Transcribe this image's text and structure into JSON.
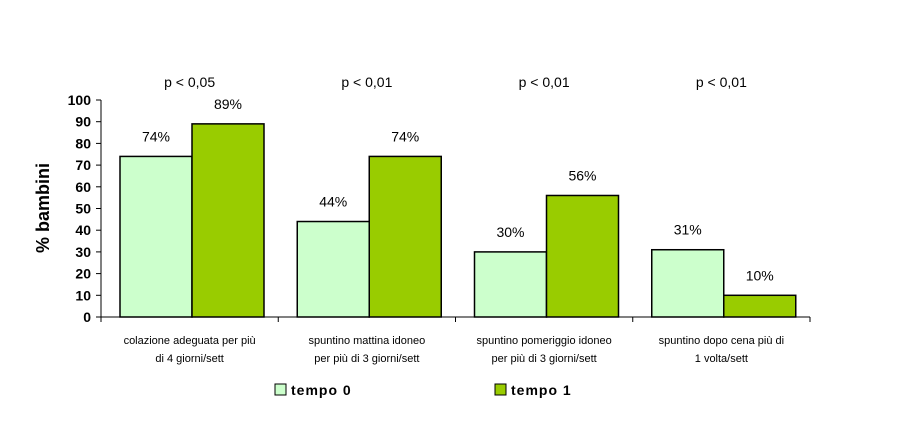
{
  "chart_data": {
    "type": "bar",
    "ylabel": "% bambini",
    "ylim": [
      0,
      100
    ],
    "yticks": [
      0,
      10,
      20,
      30,
      40,
      50,
      60,
      70,
      80,
      90,
      100
    ],
    "categories": [
      [
        "colazione adeguata per più",
        "di 4 giorni/sett"
      ],
      [
        "spuntino mattina idoneo",
        "per più di 3 giorni/sett"
      ],
      [
        "spuntino pomeriggio idoneo",
        "per più di 3 giorni/sett"
      ],
      [
        "spuntino dopo cena più di",
        "1 volta/sett"
      ]
    ],
    "pvalues": [
      "p < 0,05",
      "p < 0,01",
      "p < 0,01",
      "p < 0,01"
    ],
    "series": [
      {
        "name": "tempo 0",
        "values": [
          74,
          44,
          30,
          31
        ],
        "labels": [
          "74%",
          "44%",
          "30%",
          "31%"
        ],
        "color": "#ccffcc"
      },
      {
        "name": "tempo 1",
        "values": [
          89,
          74,
          56,
          10
        ],
        "labels": [
          "89%",
          "74%",
          "56%",
          "10%"
        ],
        "color": "#99cc00"
      }
    ],
    "legend": "bottom"
  }
}
